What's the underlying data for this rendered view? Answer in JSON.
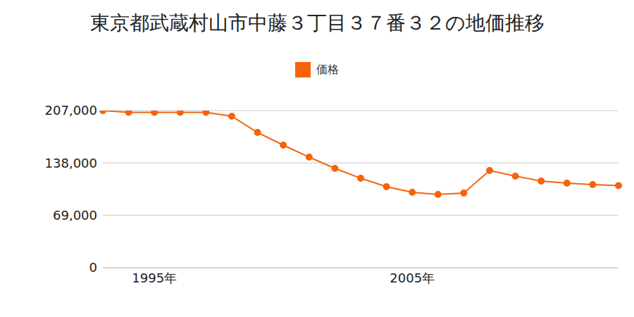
{
  "chart_data": {
    "type": "line",
    "title": "東京都武蔵村山市中藤３丁目３７番３２の地価推移",
    "categories": [
      null,
      null,
      "1995年",
      null,
      null,
      null,
      null,
      null,
      null,
      null,
      null,
      null,
      "2005年",
      null,
      null,
      null,
      null,
      null,
      null,
      null,
      null
    ],
    "series": [
      {
        "name": "価格",
        "color": "#f5640a",
        "marker": "circle",
        "values": [
          207000,
          204700,
          204700,
          204700,
          204700,
          199600,
          178200,
          161500,
          145700,
          130900,
          117900,
          106800,
          99300,
          96500,
          98400,
          128100,
          120700,
          114200,
          111400,
          109500,
          108100
        ]
      }
    ],
    "ylim": [
      0,
      207000
    ],
    "yticks": [
      0,
      {
        "value": 69000,
        "label": "69,000"
      },
      {
        "value": 138000,
        "label": "138,000"
      },
      {
        "value": 207000,
        "label": "207,000"
      }
    ],
    "grid": true,
    "legend": "top"
  }
}
